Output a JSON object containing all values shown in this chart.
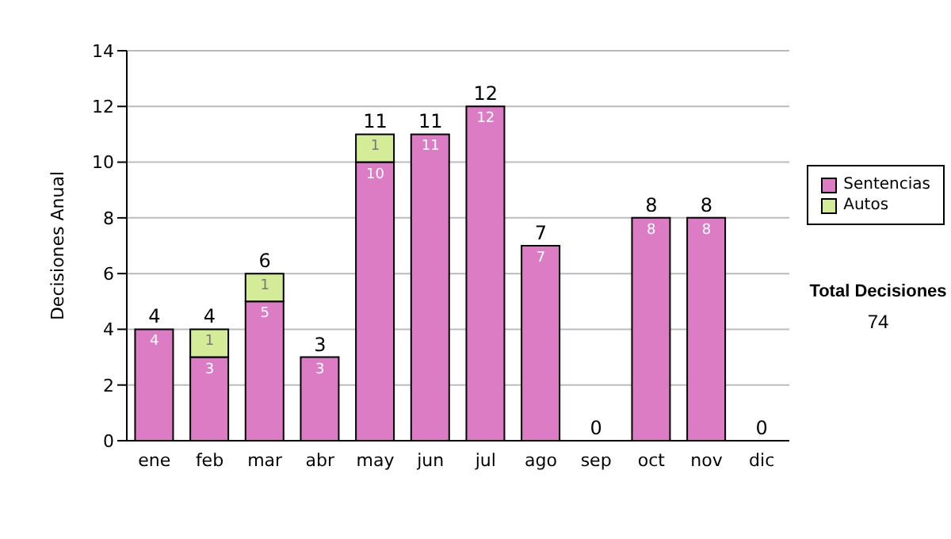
{
  "chart_data": {
    "type": "bar",
    "stacked": true,
    "ylabel": "Decisiones Anual",
    "categories": [
      "ene",
      "feb",
      "mar",
      "abr",
      "may",
      "jun",
      "jul",
      "ago",
      "sep",
      "oct",
      "nov",
      "dic"
    ],
    "series": [
      {
        "name": "Sentencias",
        "color": "#dc7cc4",
        "values": [
          4,
          3,
          5,
          3,
          10,
          11,
          12,
          7,
          0,
          8,
          8,
          0
        ],
        "value_labels": [
          "4",
          "3",
          "5",
          "3",
          "10",
          "11",
          "12",
          "7",
          null,
          "8",
          "8",
          null
        ]
      },
      {
        "name": "Autos",
        "color": "#d4ec98",
        "values": [
          0,
          1,
          1,
          0,
          1,
          0,
          0,
          0,
          0,
          0,
          0,
          0
        ],
        "value_labels": [
          null,
          "1",
          "1",
          null,
          "1",
          null,
          null,
          null,
          null,
          null,
          null,
          null
        ]
      }
    ],
    "totals": [
      "4",
      "4",
      "6",
      "3",
      "11",
      "11",
      "12",
      "7",
      "0",
      "8",
      "8",
      "0"
    ],
    "ylim": [
      0,
      14
    ],
    "yticks": [
      0,
      2,
      4,
      6,
      8,
      10,
      12,
      14
    ],
    "grid": "y",
    "legend": "right",
    "annotations": [
      "Total Decisiones",
      "74"
    ]
  }
}
